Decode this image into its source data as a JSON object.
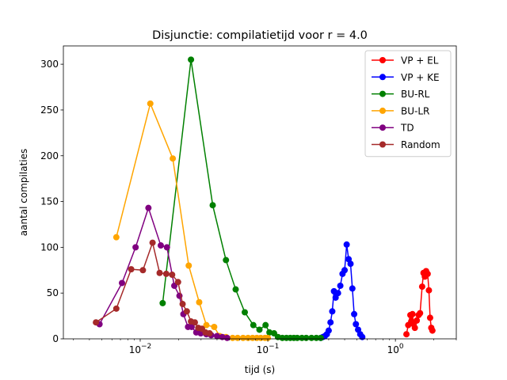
{
  "chart_data": {
    "type": "line",
    "title": "Disjunctie: compilatietijd voor r = 4.0",
    "xlabel": "tijd (s)",
    "ylabel": "aantal compilaties",
    "xscale": "log",
    "xlim": [
      0.0025,
      3.0
    ],
    "ylim": [
      0,
      320
    ],
    "x_ticks": [
      {
        "value": 0.01,
        "base": "10",
        "exp": "−2"
      },
      {
        "value": 0.1,
        "base": "10",
        "exp": "−1"
      },
      {
        "value": 1,
        "base": "10",
        "exp": "0"
      }
    ],
    "y_ticks": [
      0,
      50,
      100,
      150,
      200,
      250,
      300
    ],
    "grid": false,
    "legend_position": "top-right",
    "series": [
      {
        "name": "VP + EL",
        "color": "#ff0000",
        "x": [
          1.22,
          1.26,
          1.31,
          1.33,
          1.36,
          1.39,
          1.42,
          1.47,
          1.52,
          1.56,
          1.62,
          1.66,
          1.7,
          1.74,
          1.79,
          1.83,
          1.87,
          1.91,
          1.95
        ],
        "y": [
          5,
          15,
          26,
          19,
          27,
          16,
          12,
          20,
          26,
          28,
          57,
          72,
          68,
          74,
          71,
          53,
          23,
          12,
          9
        ]
      },
      {
        "name": "VP + KE",
        "color": "#0000ff",
        "x": [
          0.26,
          0.27,
          0.28,
          0.29,
          0.3,
          0.31,
          0.32,
          0.33,
          0.34,
          0.355,
          0.37,
          0.385,
          0.4,
          0.415,
          0.43,
          0.445,
          0.46,
          0.475,
          0.49,
          0.51,
          0.53,
          0.55
        ],
        "y": [
          1,
          2,
          3,
          5,
          9,
          18,
          30,
          52,
          45,
          50,
          58,
          71,
          75,
          103,
          87,
          82,
          55,
          27,
          16,
          10,
          5,
          2
        ]
      },
      {
        "name": "BU-RL",
        "color": "#008000",
        "x": [
          0.015,
          0.025,
          0.037,
          0.047,
          0.056,
          0.066,
          0.077,
          0.086,
          0.096,
          0.103,
          0.112,
          0.12,
          0.13,
          0.14,
          0.15,
          0.16,
          0.17,
          0.185,
          0.2,
          0.22,
          0.24,
          0.26
        ],
        "y": [
          39,
          305,
          146,
          86,
          54,
          29,
          15,
          10,
          15,
          7,
          6,
          2,
          1,
          1,
          1,
          1,
          1,
          1,
          1,
          1,
          1,
          1
        ]
      },
      {
        "name": "BU-LR",
        "color": "#ffa500",
        "x": [
          0.0065,
          0.012,
          0.018,
          0.024,
          0.029,
          0.033,
          0.038,
          0.042,
          0.047,
          0.053,
          0.058,
          0.064,
          0.07,
          0.076,
          0.082,
          0.088,
          0.095,
          0.1
        ],
        "y": [
          111,
          257,
          197,
          80,
          40,
          15,
          13,
          3,
          2,
          1,
          1,
          1,
          1,
          1,
          1,
          1,
          1,
          1
        ]
      },
      {
        "name": "TD",
        "color": "#800080",
        "x": [
          0.0048,
          0.0072,
          0.0092,
          0.0116,
          0.0145,
          0.0162,
          0.0185,
          0.0203,
          0.0218,
          0.0237,
          0.0253,
          0.0275,
          0.0298,
          0.033,
          0.036,
          0.04,
          0.044,
          0.048
        ],
        "y": [
          16,
          61,
          100,
          143,
          102,
          100,
          58,
          47,
          27,
          13,
          13,
          7,
          6,
          5,
          4,
          3,
          2,
          1
        ]
      },
      {
        "name": "Random",
        "color": "#a52a2a",
        "x": [
          0.0045,
          0.0065,
          0.0085,
          0.0105,
          0.0125,
          0.0142,
          0.016,
          0.0178,
          0.0198,
          0.0215,
          0.0232,
          0.025,
          0.0268,
          0.0285,
          0.0305,
          0.0325,
          0.035
        ],
        "y": [
          18,
          33,
          76,
          75,
          105,
          72,
          71,
          70,
          62,
          38,
          30,
          19,
          18,
          12,
          11,
          7,
          6
        ]
      }
    ]
  }
}
